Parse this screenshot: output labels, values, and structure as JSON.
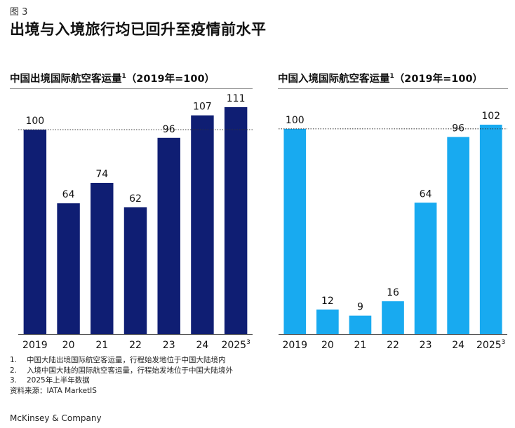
{
  "figure_label": "图 3",
  "title": "出境与入境旅行均已回升至疫情前水平",
  "colors": {
    "outbound": "#0f1e73",
    "inbound": "#18aaf0"
  },
  "chart_data": [
    {
      "type": "bar",
      "title": "中国出境国际航空客运量",
      "title_sup": "1",
      "title_suffix": "（2019年=100）",
      "categories": [
        "2019",
        "20",
        "21",
        "22",
        "23",
        "24",
        "2025"
      ],
      "category_sup": [
        "",
        "",
        "",
        "",
        "",
        "",
        "3"
      ],
      "values": [
        100,
        64,
        74,
        62,
        96,
        107,
        111
      ],
      "labels": [
        "100",
        "64",
        "74",
        "62",
        "96",
        "107",
        "111"
      ],
      "reference_line": 100,
      "ylim": [
        0,
        111
      ]
    },
    {
      "type": "bar",
      "title": "中国入境国际航空客运量",
      "title_sup": "1",
      "title_suffix": "（2019年=100）",
      "categories": [
        "2019",
        "20",
        "21",
        "22",
        "23",
        "24",
        "2025"
      ],
      "category_sup": [
        "",
        "",
        "",
        "",
        "",
        "",
        "3"
      ],
      "values": [
        100,
        12,
        9,
        16,
        64,
        96,
        102
      ],
      "labels": [
        "100",
        "12",
        "9",
        "16",
        "64",
        "96",
        "102"
      ],
      "reference_line": 100,
      "ylim": [
        0,
        102
      ]
    }
  ],
  "footnotes": [
    {
      "num": "1.",
      "text": "中国大陆出境国际航空客运量，行程始发地位于中国大陆境内"
    },
    {
      "num": "2.",
      "text": "入境中国大陆的国际航空客运量，行程始发地位于中国大陆境外"
    },
    {
      "num": "3.",
      "text": "2025年上半年数据"
    }
  ],
  "source": "资料来源：IATA MarketIS",
  "brand": "McKinsey & Company"
}
